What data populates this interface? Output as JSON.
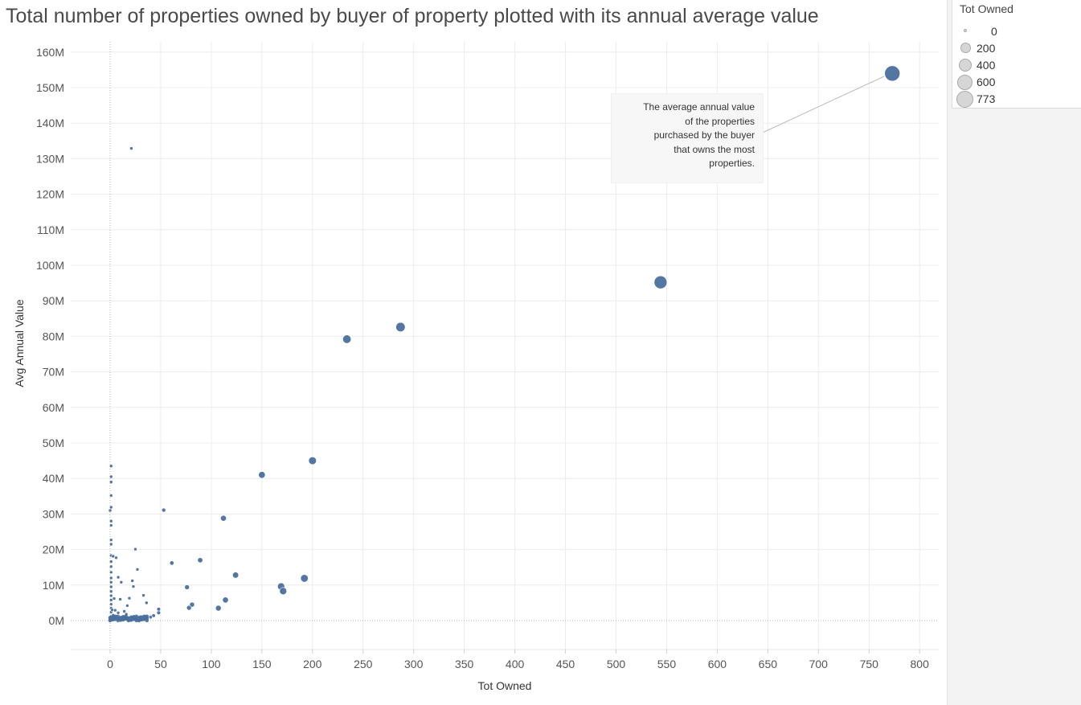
{
  "title": "Total number of properties owned by buyer of property plotted with its annual average value",
  "annotation": {
    "lines": [
      "The average annual value",
      "of the properties",
      "purchased by the buyer",
      "that owns the most",
      "properties."
    ]
  },
  "legend": {
    "title": "Tot Owned",
    "items": [
      {
        "label": "0",
        "value": 0
      },
      {
        "label": "200",
        "value": 200
      },
      {
        "label": "400",
        "value": 400
      },
      {
        "label": "600",
        "value": 600
      },
      {
        "label": "773",
        "value": 773
      }
    ]
  },
  "colors": {
    "mark": "#4a6f9e",
    "grid": "#ececec",
    "zeroline": "#b4b4b4"
  },
  "chart_data": {
    "type": "scatter",
    "title": "Total number of properties owned by buyer of property plotted with its annual average value",
    "xlabel": "Tot Owned",
    "ylabel": "Avg Annual Value",
    "xlim": [
      -40,
      820
    ],
    "ylim": [
      -8,
      163
    ],
    "x_ticks": [
      0,
      50,
      100,
      150,
      200,
      250,
      300,
      350,
      400,
      450,
      500,
      550,
      600,
      650,
      700,
      750,
      800
    ],
    "x_tick_labels": [
      "0",
      "50",
      "100",
      "150",
      "200",
      "250",
      "300",
      "350",
      "400",
      "450",
      "500",
      "550",
      "600",
      "650",
      "700",
      "750",
      "800"
    ],
    "y_ticks": [
      0,
      10,
      20,
      30,
      40,
      50,
      60,
      70,
      80,
      90,
      100,
      110,
      120,
      130,
      140,
      150,
      160
    ],
    "y_tick_labels": [
      "0M",
      "10M",
      "20M",
      "30M",
      "40M",
      "50M",
      "60M",
      "70M",
      "80M",
      "90M",
      "100M",
      "110M",
      "120M",
      "130M",
      "140M",
      "150M",
      "160M"
    ],
    "grid": true,
    "legend_position": "top-right",
    "size_encoding": "Tot Owned",
    "points": [
      {
        "x": 773,
        "y": 154.0
      },
      {
        "x": 544,
        "y": 95.2
      },
      {
        "x": 287,
        "y": 82.6
      },
      {
        "x": 234,
        "y": 79.2
      },
      {
        "x": 200,
        "y": 45.0
      },
      {
        "x": 150,
        "y": 41.0
      },
      {
        "x": 112,
        "y": 28.8
      },
      {
        "x": 53,
        "y": 31.1
      },
      {
        "x": 21,
        "y": 132.9
      },
      {
        "x": 89,
        "y": 17.0
      },
      {
        "x": 61,
        "y": 16.2
      },
      {
        "x": 124,
        "y": 12.8
      },
      {
        "x": 192,
        "y": 11.9
      },
      {
        "x": 169,
        "y": 9.6
      },
      {
        "x": 171,
        "y": 8.3
      },
      {
        "x": 76,
        "y": 9.4
      },
      {
        "x": 114,
        "y": 5.8
      },
      {
        "x": 107,
        "y": 3.5
      },
      {
        "x": 81,
        "y": 4.5
      },
      {
        "x": 78,
        "y": 3.6
      },
      {
        "x": 25,
        "y": 20.1
      },
      {
        "x": 27,
        "y": 14.4
      },
      {
        "x": 33,
        "y": 7.1
      },
      {
        "x": 36,
        "y": 5.0
      },
      {
        "x": 48,
        "y": 3.2
      },
      {
        "x": 48,
        "y": 2.2
      },
      {
        "x": 43,
        "y": 1.4
      },
      {
        "x": 40,
        "y": 1.0
      },
      {
        "x": 35,
        "y": 1.2
      },
      {
        "x": 30,
        "y": 1.1
      },
      {
        "x": 25,
        "y": 0.8
      },
      {
        "x": 20,
        "y": 0.6
      },
      {
        "x": 16,
        "y": 1.8
      },
      {
        "x": 12,
        "y": 1.0
      },
      {
        "x": 8,
        "y": 2.2
      },
      {
        "x": 5,
        "y": 0.5
      },
      {
        "x": 3,
        "y": 1.5
      },
      {
        "x": 2,
        "y": 3.0
      },
      {
        "x": 1,
        "y": 0.3
      },
      {
        "x": 22,
        "y": 11.2
      },
      {
        "x": 23,
        "y": 9.6
      },
      {
        "x": 19,
        "y": 6.3
      },
      {
        "x": 10,
        "y": 6.0
      },
      {
        "x": 8,
        "y": 12.2
      },
      {
        "x": 6,
        "y": 17.7
      },
      {
        "x": 11,
        "y": 10.8
      },
      {
        "x": 17,
        "y": 4.2
      },
      {
        "x": 14,
        "y": 2.6
      },
      {
        "x": 1,
        "y": 43.5
      },
      {
        "x": 1,
        "y": 40.5
      },
      {
        "x": 1,
        "y": 39.0
      },
      {
        "x": 1,
        "y": 35.2
      },
      {
        "x": 1,
        "y": 31.9
      },
      {
        "x": 0,
        "y": 31.0
      },
      {
        "x": 1,
        "y": 28.0
      },
      {
        "x": 1,
        "y": 26.8
      },
      {
        "x": 1,
        "y": 22.7
      },
      {
        "x": 1,
        "y": 21.5
      },
      {
        "x": 1,
        "y": 18.3
      },
      {
        "x": 1,
        "y": 16.6
      },
      {
        "x": 1,
        "y": 15.2
      },
      {
        "x": 1,
        "y": 13.6
      },
      {
        "x": 1,
        "y": 12.0
      },
      {
        "x": 1,
        "y": 10.8
      },
      {
        "x": 1,
        "y": 9.5
      },
      {
        "x": 1,
        "y": 8.2
      },
      {
        "x": 1,
        "y": 7.0
      },
      {
        "x": 1,
        "y": 5.8
      },
      {
        "x": 1,
        "y": 4.6
      },
      {
        "x": 1,
        "y": 3.5
      },
      {
        "x": 1,
        "y": 2.4
      },
      {
        "x": 1,
        "y": 1.2
      },
      {
        "x": 3,
        "y": 18.1
      },
      {
        "x": 4,
        "y": 6.2
      },
      {
        "x": 5,
        "y": 2.9
      },
      {
        "x": 7,
        "y": 0.9
      },
      {
        "x": 9,
        "y": 0.4
      },
      {
        "x": 13,
        "y": 0.3
      }
    ]
  }
}
